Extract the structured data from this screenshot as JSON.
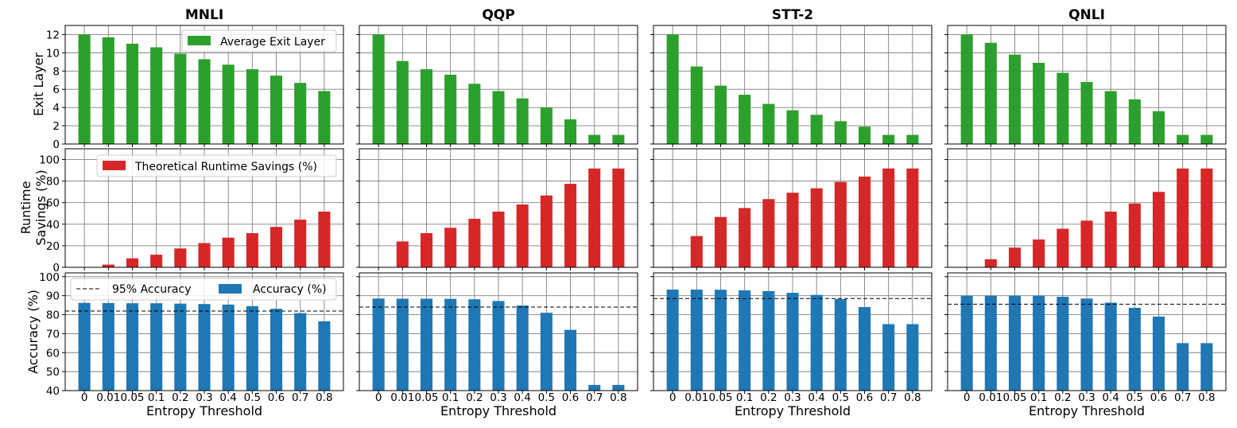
{
  "figure": {
    "xlabel": "Entropy Threshold",
    "row_labels": [
      [
        "Exit Layer"
      ],
      [
        "Runtime",
        "Savings (%)"
      ],
      [
        "Accuracy (%)"
      ]
    ],
    "colors": {
      "exit": "#2ca02c",
      "runtime": "#d62728",
      "accuracy": "#1f77b4",
      "grid": "#808080",
      "reference_line": "#000000"
    }
  },
  "chart_data": [
    {
      "type": "bar",
      "title": "MNLI",
      "categories": [
        "0",
        "0.01",
        "0.05",
        "0.1",
        "0.2",
        "0.3",
        "0.4",
        "0.5",
        "0.6",
        "0.7",
        "0.8"
      ],
      "xlabel": "Entropy Threshold",
      "grid": true,
      "panels": [
        {
          "ylabel": "Exit Layer",
          "ylim": [
            0,
            13
          ],
          "yticks": [
            0,
            2,
            4,
            6,
            8,
            10,
            12
          ],
          "legend": "top-right",
          "series": [
            {
              "name": "Average Exit Layer",
              "values": [
                12,
                11.7,
                11,
                10.6,
                9.9,
                9.3,
                8.7,
                8.2,
                7.5,
                6.7,
                5.8
              ]
            }
          ]
        },
        {
          "ylabel": "Runtime Savings (%)",
          "ylim": [
            0,
            110
          ],
          "yticks": [
            0,
            20,
            40,
            60,
            80,
            100
          ],
          "legend": "top-right",
          "series": [
            {
              "name": "Theoretical Runtime Savings (%)",
              "values": [
                0,
                2.5,
                8.3,
                11.7,
                17.5,
                22.5,
                27.5,
                31.7,
                37.5,
                44.2,
                51.7
              ]
            }
          ]
        },
        {
          "ylabel": "Accuracy (%)",
          "ylim": [
            40,
            102
          ],
          "yticks": [
            40,
            50,
            60,
            70,
            80,
            90,
            100
          ],
          "legend": "top",
          "series": [
            {
              "name": "Accuracy (%)",
              "values": [
                86.2,
                86.1,
                86,
                86,
                85.8,
                85.6,
                85.3,
                84.5,
                83.1,
                80.8,
                76.5
              ]
            }
          ],
          "reference_line": {
            "name": "95% Accuracy",
            "value": 81.9
          }
        }
      ]
    },
    {
      "type": "bar",
      "title": "QQP",
      "categories": [
        "0",
        "0.01",
        "0.05",
        "0.1",
        "0.2",
        "0.3",
        "0.4",
        "0.5",
        "0.6",
        "0.7",
        "0.8"
      ],
      "xlabel": "Entropy Threshold",
      "grid": true,
      "panels": [
        {
          "ylim": [
            0,
            13
          ],
          "series": [
            {
              "values": [
                12,
                9.1,
                8.2,
                7.6,
                6.6,
                5.8,
                5,
                4,
                2.7,
                1,
                1
              ]
            }
          ]
        },
        {
          "ylim": [
            0,
            110
          ],
          "series": [
            {
              "values": [
                0,
                24,
                31.7,
                36.7,
                45,
                51.7,
                58.3,
                66.7,
                77.5,
                91.7,
                91.7
              ]
            }
          ]
        },
        {
          "ylim": [
            40,
            102
          ],
          "series": [
            {
              "values": [
                88.5,
                88.4,
                88.4,
                88.3,
                88.1,
                87.2,
                84.8,
                81,
                72,
                43,
                43
              ]
            }
          ],
          "reference_line": {
            "value": 84
          }
        }
      ]
    },
    {
      "type": "bar",
      "title": "STT-2",
      "categories": [
        "0",
        "0.01",
        "0.05",
        "0.1",
        "0.2",
        "0.3",
        "0.4",
        "0.5",
        "0.6",
        "0.7",
        "0.8"
      ],
      "xlabel": "Entropy Threshold",
      "grid": true,
      "panels": [
        {
          "ylim": [
            0,
            13
          ],
          "series": [
            {
              "values": [
                12,
                8.5,
                6.4,
                5.4,
                4.4,
                3.7,
                3.2,
                2.5,
                1.9,
                1,
                1
              ]
            }
          ]
        },
        {
          "ylim": [
            0,
            110
          ],
          "series": [
            {
              "values": [
                0,
                29,
                46.7,
                55,
                63.3,
                69.2,
                73.3,
                79.2,
                84.2,
                91.7,
                91.7
              ]
            }
          ]
        },
        {
          "ylim": [
            40,
            102
          ],
          "series": [
            {
              "values": [
                93.2,
                93.2,
                93.1,
                92.8,
                92.4,
                91.5,
                90.4,
                88.2,
                84,
                75,
                75
              ]
            }
          ],
          "reference_line": {
            "value": 88.5
          }
        }
      ]
    },
    {
      "type": "bar",
      "title": "QNLI",
      "categories": [
        "0",
        "0.01",
        "0.05",
        "0.1",
        "0.2",
        "0.3",
        "0.4",
        "0.5",
        "0.6",
        "0.7",
        "0.8"
      ],
      "xlabel": "Entropy Threshold",
      "grid": true,
      "panels": [
        {
          "ylim": [
            0,
            13
          ],
          "series": [
            {
              "values": [
                12,
                11.1,
                9.8,
                8.9,
                7.8,
                6.8,
                5.8,
                4.9,
                3.6,
                1,
                1
              ]
            }
          ]
        },
        {
          "ylim": [
            0,
            110
          ],
          "series": [
            {
              "values": [
                0,
                7.5,
                18.3,
                25.8,
                35.8,
                43.3,
                51.7,
                59.2,
                70,
                91.7,
                91.7
              ]
            }
          ]
        },
        {
          "ylim": [
            40,
            102
          ],
          "series": [
            {
              "values": [
                90,
                90,
                90,
                90,
                89.4,
                88.5,
                86.3,
                83.6,
                79,
                65,
                65
              ]
            }
          ],
          "reference_line": {
            "value": 85.5
          }
        }
      ]
    }
  ]
}
